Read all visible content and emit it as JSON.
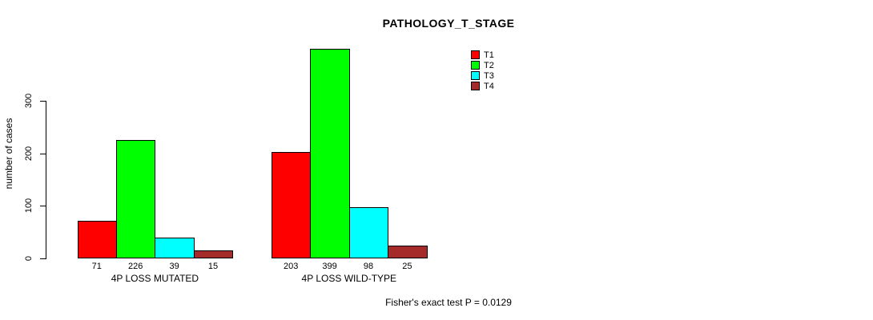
{
  "chart_data": {
    "type": "bar",
    "title": "PATHOLOGY_T_STAGE",
    "ylabel": "number of cases",
    "xlabel": "",
    "ylim": [
      0,
      300
    ],
    "yticks": [
      0,
      100,
      200,
      300
    ],
    "grid": false,
    "legend_position": "top-right",
    "legend": [
      {
        "label": "T1",
        "color": "#ff0000"
      },
      {
        "label": "T2",
        "color": "#00ff00"
      },
      {
        "label": "T3",
        "color": "#00ffff"
      },
      {
        "label": "T4",
        "color": "#a52a2a"
      }
    ],
    "groups": [
      {
        "label": "4P LOSS MUTATED",
        "values": [
          71,
          226,
          39,
          15
        ]
      },
      {
        "label": "4P LOSS WILD-TYPE",
        "values": [
          203,
          399,
          98,
          25
        ]
      }
    ],
    "annotation": "Fisher's exact test P = 0.0129"
  }
}
